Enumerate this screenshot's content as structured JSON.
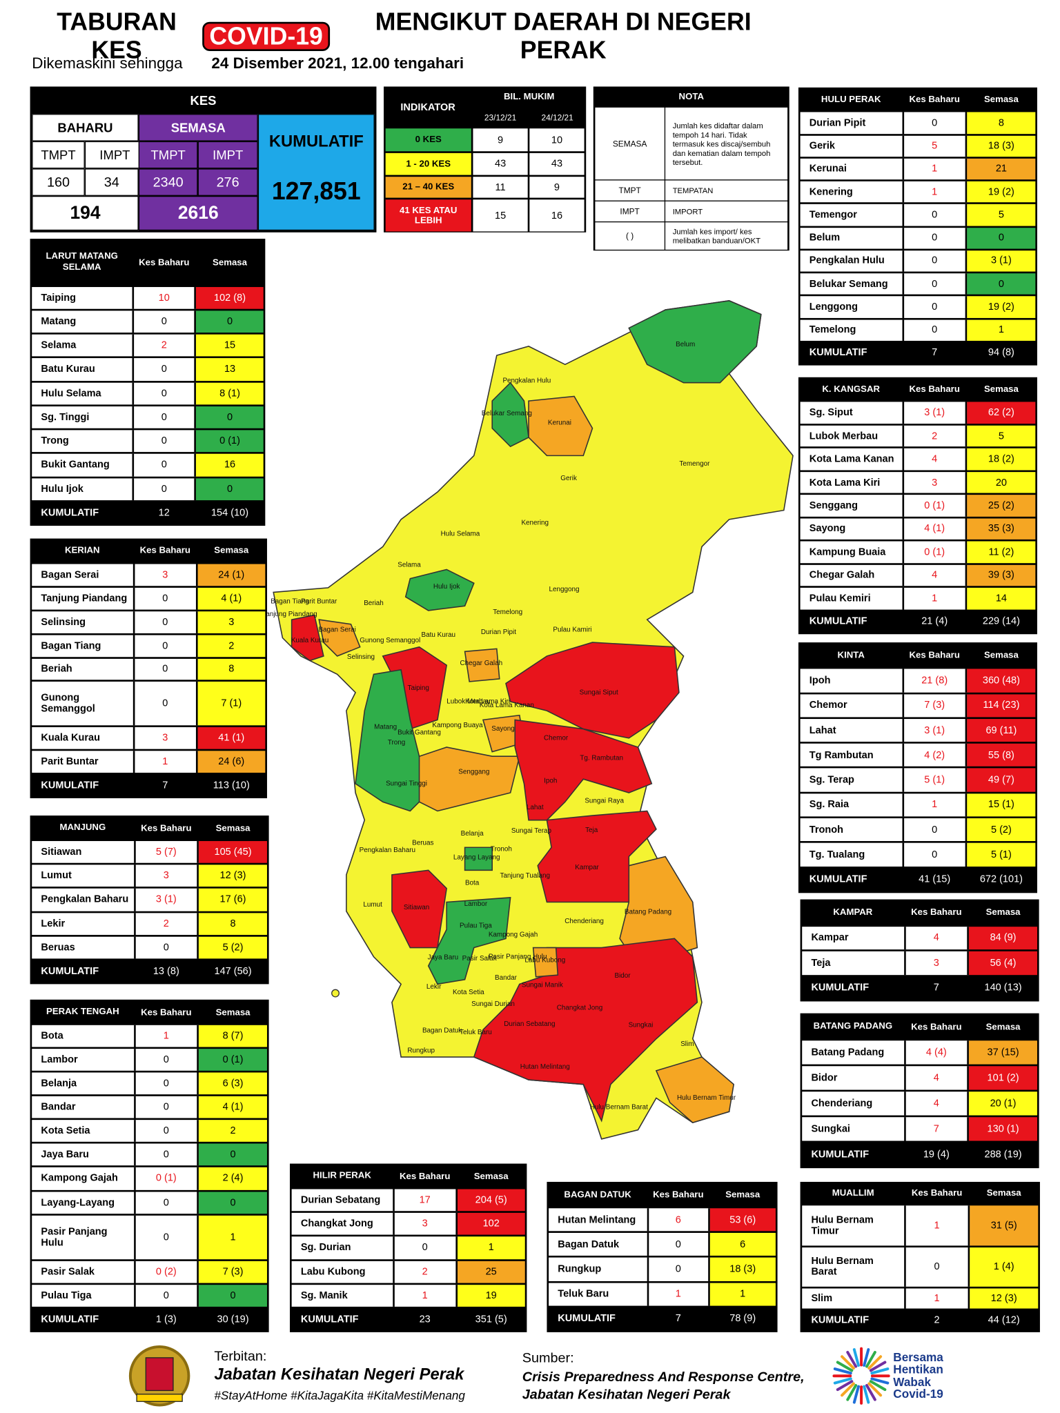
{
  "header": {
    "title_1": "TABURAN KES",
    "title_highlight": "COVID-19",
    "title_2": "MENGIKUT DAERAH DI NEGERI PERAK",
    "subtitle": "Dikemaskini sehingga",
    "subtitle_date": "24 Disember 2021, 12.00 tengahari"
  },
  "summary": {
    "title": "KES",
    "baharu": "BAHARU",
    "semasa": "SEMASA",
    "kumulatif": "KUMULATIF",
    "tmpt": "TMPT",
    "impt": "IMPT",
    "baharu_tmpt": 160,
    "baharu_impt": 34,
    "semasa_tmpt": 2340,
    "semasa_impt": 276,
    "baharu_total": 194,
    "semasa_total": 2616,
    "kumulatif_total": "127,851"
  },
  "indicator": {
    "title": "INDIKATOR",
    "bil": "BIL. MUKIM",
    "dates": [
      "23/12/21",
      "24/12/21"
    ],
    "rows": [
      {
        "label": "0 KES",
        "values": [
          9,
          10
        ]
      },
      {
        "label": "1 - 20 KES",
        "values": [
          43,
          43
        ]
      },
      {
        "label": "21 – 40 KES",
        "values": [
          11,
          9
        ]
      },
      {
        "label": "41 KES ATAU LEBIH",
        "values": [
          15,
          16
        ]
      }
    ]
  },
  "nota": {
    "title": "NOTA",
    "rows": [
      [
        "SEMASA",
        "Jumlah kes didaftar dalam tempoh 14 hari. Tidak termasuk kes discaj/sembuh dan kematian dalam tempoh tersebut."
      ],
      [
        "TMPT",
        "TEMPATAN"
      ],
      [
        "IMPT",
        "IMPORT"
      ],
      [
        "( )",
        "Jumlah kes import/ kes melibatkan banduan/OKT"
      ]
    ]
  },
  "districts": [
    {
      "title": "LARUT MATANG SELAMA",
      "columns": [
        "Kes Baharu",
        "Semasa"
      ],
      "rows": [
        [
          "Taiping",
          10,
          "102 (8)"
        ],
        [
          "Matang",
          0,
          0
        ],
        [
          "Selama",
          2,
          15
        ],
        [
          "Batu Kurau",
          0,
          13
        ],
        [
          "Hulu Selama",
          0,
          "8 (1)"
        ],
        [
          "Sg. Tinggi",
          0,
          0
        ],
        [
          "Trong",
          0,
          "0 (1)"
        ],
        [
          "Bukit Gantang",
          0,
          16
        ],
        [
          "Hulu Ijok",
          0,
          0
        ]
      ],
      "total": [
        "KUMULATIF",
        12,
        "154 (10)"
      ]
    },
    {
      "title": "KERIAN",
      "columns": [
        "Kes Baharu",
        "Semasa"
      ],
      "rows": [
        [
          "Bagan Serai",
          3,
          "24 (1)"
        ],
        [
          "Tanjung Piandang",
          0,
          "4 (1)"
        ],
        [
          "Selinsing",
          0,
          3
        ],
        [
          "Bagan Tiang",
          0,
          2
        ],
        [
          "Beriah",
          0,
          8
        ],
        [
          "Gunong Semanggol",
          0,
          "7 (1)"
        ],
        [
          "Kuala Kurau",
          3,
          "41 (1)"
        ],
        [
          "Parit Buntar",
          1,
          "24 (6)"
        ]
      ],
      "total": [
        "KUMULATIF",
        7,
        "113 (10)"
      ]
    },
    {
      "title": "MANJUNG",
      "columns": [
        "Kes Baharu",
        "Semasa"
      ],
      "rows": [
        [
          "Sitiawan",
          "5 (7)",
          "105 (45)"
        ],
        [
          "Lumut",
          3,
          "12 (3)"
        ],
        [
          "Pengkalan Baharu",
          "3 (1)",
          "17 (6)"
        ],
        [
          "Lekir",
          2,
          8
        ],
        [
          "Beruas",
          0,
          "5 (2)"
        ]
      ],
      "total": [
        "KUMULATIF",
        "13 (8)",
        "147 (56)"
      ]
    },
    {
      "title": "PERAK TENGAH",
      "columns": [
        "Kes Baharu",
        "Semasa"
      ],
      "rows": [
        [
          "Bota",
          1,
          "8 (7)"
        ],
        [
          "Lambor",
          0,
          "0 (1)"
        ],
        [
          "Belanja",
          0,
          "6 (3)"
        ],
        [
          "Bandar",
          0,
          "4 (1)"
        ],
        [
          "Kota Setia",
          0,
          2
        ],
        [
          "Jaya Baru",
          0,
          0
        ],
        [
          "Kampong Gajah",
          "0 (1)",
          "2 (4)"
        ],
        [
          "Layang-Layang",
          0,
          0
        ],
        [
          "Pasir Panjang Hulu",
          0,
          1
        ],
        [
          "Pasir Salak",
          "0 (2)",
          "7 (3)"
        ],
        [
          "Pulau Tiga",
          0,
          0
        ]
      ],
      "total": [
        "KUMULATIF",
        "1 (3)",
        "30 (19)"
      ]
    },
    {
      "title": "HILIR PERAK",
      "columns": [
        "Kes Baharu",
        "Semasa"
      ],
      "rows": [
        [
          "Durian Sebatang",
          17,
          "204 (5)"
        ],
        [
          "Changkat Jong",
          3,
          102
        ],
        [
          "Sg. Durian",
          0,
          1
        ],
        [
          "Labu Kubong",
          2,
          25
        ],
        [
          "Sg. Manik",
          1,
          19
        ]
      ],
      "total": [
        "KUMULATIF",
        23,
        "351 (5)"
      ]
    },
    {
      "title": "BAGAN DATUK",
      "columns": [
        "Kes Baharu",
        "Semasa"
      ],
      "rows": [
        [
          "Hutan Melintang",
          6,
          "53 (6)"
        ],
        [
          "Bagan Datuk",
          0,
          6
        ],
        [
          "Rungkup",
          0,
          "18 (3)"
        ],
        [
          "Teluk Baru",
          1,
          1
        ]
      ],
      "total": [
        "KUMULATIF",
        7,
        "78 (9)"
      ]
    },
    {
      "title": "MUALLIM",
      "columns": [
        "Kes Baharu",
        "Semasa"
      ],
      "rows": [
        [
          "Hulu Bernam Timur",
          1,
          "31 (5)"
        ],
        [
          "Hulu Bernam Barat",
          0,
          "1 (4)"
        ],
        [
          "Slim",
          1,
          "12 (3)"
        ]
      ],
      "total": [
        "KUMULATIF",
        2,
        "44 (12)"
      ]
    },
    {
      "title": "HULU PERAK",
      "columns": [
        "Kes Baharu",
        "Semasa"
      ],
      "rows": [
        [
          "Durian Pipit",
          0,
          8
        ],
        [
          "Gerik",
          5,
          "18 (3)"
        ],
        [
          "Kerunai",
          1,
          21
        ],
        [
          "Kenering",
          1,
          "19 (2)"
        ],
        [
          "Temengor",
          0,
          5
        ],
        [
          "Belum",
          0,
          0
        ],
        [
          "Pengkalan Hulu",
          0,
          "3 (1)"
        ],
        [
          "Belukar Semang",
          0,
          0
        ],
        [
          "Lenggong",
          0,
          "19 (2)"
        ],
        [
          "Temelong",
          0,
          1
        ]
      ],
      "total": [
        "KUMULATIF",
        7,
        "94 (8)"
      ]
    },
    {
      "title": "K. KANGSAR",
      "columns": [
        "Kes Baharu",
        "Semasa"
      ],
      "rows": [
        [
          "Sg. Siput",
          "3 (1)",
          "62 (2)"
        ],
        [
          "Lubok Merbau",
          2,
          5
        ],
        [
          "Kota Lama Kanan",
          4,
          "18 (2)"
        ],
        [
          "Kota Lama Kiri",
          3,
          20
        ],
        [
          "Senggang",
          "0 (1)",
          "25 (2)"
        ],
        [
          "Sayong",
          "4 (1)",
          "35 (3)"
        ],
        [
          "Kampung Buaia",
          "0 (1)",
          "11 (2)"
        ],
        [
          "Chegar Galah",
          4,
          "39 (3)"
        ],
        [
          "Pulau Kemiri",
          1,
          14
        ]
      ],
      "total": [
        "KUMULATIF",
        "21 (4)",
        "229 (14)"
      ]
    },
    {
      "title": "KINTA",
      "columns": [
        "Kes Baharu",
        "Semasa"
      ],
      "rows": [
        [
          "Ipoh",
          "21 (8)",
          "360 (48)"
        ],
        [
          "Chemor",
          "7 (3)",
          "114 (23)"
        ],
        [
          "Lahat",
          "3 (1)",
          "69 (11)"
        ],
        [
          "Tg Rambutan",
          "4 (2)",
          "55 (8)"
        ],
        [
          "Sg. Terap",
          "5 (1)",
          "49 (7)"
        ],
        [
          "Sg. Raia",
          1,
          "15 (1)"
        ],
        [
          "Tronoh",
          0,
          "5 (2)"
        ],
        [
          "Tg. Tualang",
          0,
          "5 (1)"
        ]
      ],
      "total": [
        "KUMULATIF",
        "41 (15)",
        "672 (101)"
      ]
    },
    {
      "title": "KAMPAR",
      "columns": [
        "Kes Baharu",
        "Semasa"
      ],
      "rows": [
        [
          "Kampar",
          4,
          "84 (9)"
        ],
        [
          "Teja",
          3,
          "56 (4)"
        ]
      ],
      "total": [
        "KUMULATIF",
        7,
        "140 (13)"
      ]
    },
    {
      "title": "BATANG PADANG",
      "columns": [
        "Kes Baharu",
        "Semasa"
      ],
      "rows": [
        [
          "Batang Padang",
          "4 (4)",
          "37 (15)"
        ],
        [
          "Bidor",
          4,
          "101 (2)"
        ],
        [
          "Chenderiang",
          4,
          "20 (1)"
        ],
        [
          "Sungkai",
          7,
          "130 (1)"
        ]
      ],
      "total": [
        "KUMULATIF",
        "19 (4)",
        "288 (19)"
      ]
    }
  ],
  "map": {
    "labels": [
      "Belum",
      "Pengkalan Hulu",
      "Belukar Semang",
      "Kerunai",
      "Gerik",
      "Temengor",
      "Kenering",
      "Hulu Selama",
      "Selama",
      "Hulu Ijok",
      "Lenggong",
      "Temelong",
      "Durian Pipit",
      "Pulau Kamiri",
      "Batu Kurau",
      "Beriah",
      "Bagan Tiang",
      "Parit Buntar",
      "Tanjung Piandang",
      "Bagan Serai",
      "Gunong Semanggol",
      "Kuala Kurau",
      "Selinsing",
      "Chegar Galah",
      "Taiping",
      "Sungai Siput",
      "Lubok Merbau",
      "Kota Lama Kiri",
      "Kota Lama Kanan",
      "Matang",
      "Kampong Buaya",
      "Sayong",
      "Chemor",
      "Bukit Gantang",
      "Trong",
      "Tg. Rambutan",
      "Senggang",
      "Ipoh",
      "Sungai Tinggi",
      "Sungai Raya",
      "Lahat",
      "Sungai Terap",
      "Teja",
      "Belanja",
      "Pengkalan Baharu",
      "Beruas",
      "Tronoh",
      "Layang Layang",
      "Kampar",
      "Tanjung Tualang",
      "Bota",
      "Lumut",
      "Sitiawan",
      "Lambor",
      "Batang Padang",
      "Chenderiang",
      "Pulau Tiga",
      "Kampong Gajah",
      "Pasir Panjang Hulu",
      "Labu Kubong",
      "Pasir Salak",
      "Jaya Baru",
      "Bidor",
      "Bandar",
      "Sungai Manik",
      "Lekir",
      "Kota Setia",
      "Sungai Durian",
      "Changkat Jong",
      "Durian Sebatang",
      "Sungkai",
      "Bagan Datuk",
      "Teluk Baru",
      "Slim",
      "Rungkup",
      "Hutan Melintang",
      "Hulu Bernam Timur",
      "Hulu Bernam Barat"
    ]
  },
  "footer": {
    "publisher_label": "Terbitan:",
    "publisher": "Jabatan Kesihatan Negeri Perak",
    "hashtags": "#StayAtHome #KitaJagaKita #KitaMestiMenang",
    "source_label": "Sumber:",
    "source_1": "Crisis Preparedness And Response Centre,",
    "source_2": "Jabatan Kesihatan Negeri Perak",
    "logo_text": [
      "Bersama",
      "Hentikan",
      "Wabak",
      "Covid-19"
    ]
  }
}
